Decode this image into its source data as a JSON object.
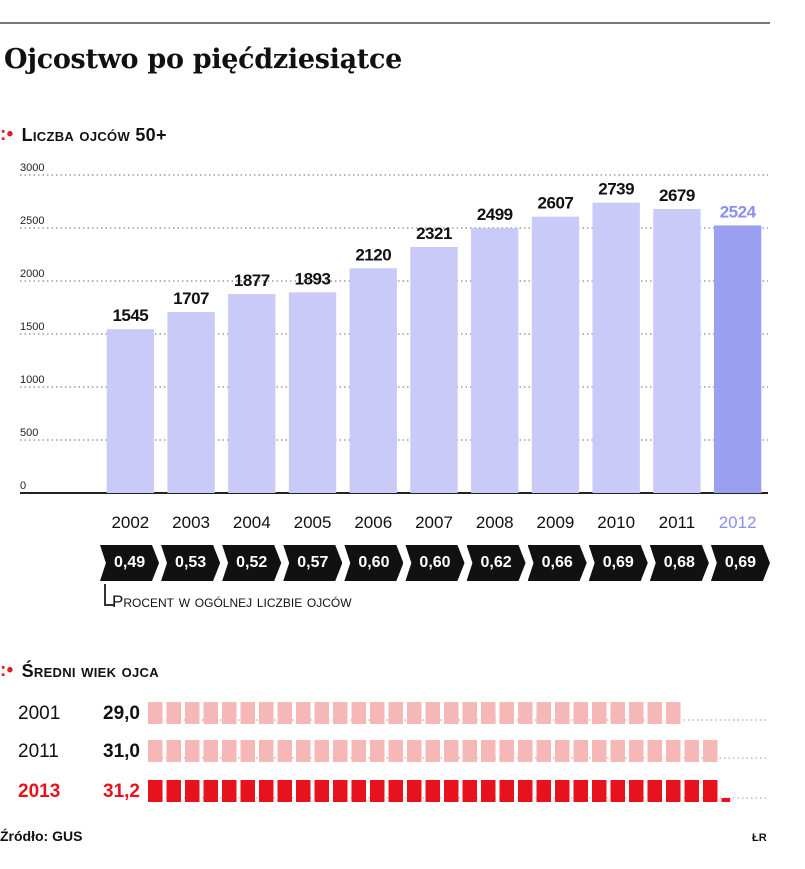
{
  "title": "Ojcostwo po  pięćdziesiątce",
  "chart_data": [
    {
      "type": "bar",
      "title": "Liczba ojców 50+",
      "categories": [
        "2002",
        "2003",
        "2004",
        "2005",
        "2006",
        "2007",
        "2008",
        "2009",
        "2010",
        "2011",
        "2012"
      ],
      "values": [
        1545,
        1707,
        1877,
        1893,
        2120,
        2321,
        2499,
        2607,
        2739,
        2679,
        2524
      ],
      "yticks": [
        0,
        500,
        1000,
        1500,
        2000,
        2500,
        3000
      ],
      "ylim": [
        0,
        3000
      ],
      "grid": true,
      "colors": {
        "bar": "#c9caf7",
        "highlight": "#9b9ff2",
        "highlight_label": "#8a8fef",
        "text": "#111111"
      },
      "highlight_index": 10,
      "percent_label": "Procent w ogólnej liczbie ojców",
      "percent_values": [
        "0,49",
        "0,53",
        "0,52",
        "0,57",
        "0,60",
        "0,60",
        "0,62",
        "0,66",
        "0,69",
        "0,68",
        "0,69"
      ]
    },
    {
      "type": "bar",
      "title": "Średni wiek ojca",
      "orientation": "horizontal",
      "categories": [
        "2001",
        "2011",
        "2013"
      ],
      "values": [
        29.0,
        31.0,
        31.2
      ],
      "value_labels": [
        "29,0",
        "31,0",
        "31,2"
      ],
      "colors": {
        "normal": "#f6b7b7",
        "highlight": "#e8121e",
        "highlight_text": "#e8121e"
      },
      "highlight_index": 2
    }
  ],
  "source": "Źródło: GUS",
  "logo": "ŁR"
}
